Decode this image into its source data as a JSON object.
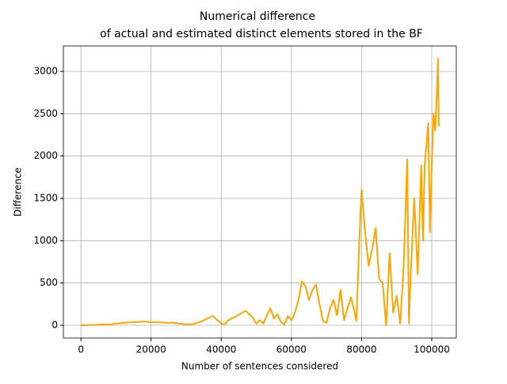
{
  "chart_data": {
    "type": "line",
    "title": [
      "Numerical difference",
      "of actual and estimated distinct elements stored in the BF"
    ],
    "x_label": "Number of sentences considered",
    "y_label": "Difference",
    "xlim": [
      -5000,
      107000
    ],
    "ylim": [
      -150,
      3300
    ],
    "xticks": [
      0,
      20000,
      40000,
      60000,
      80000,
      100000
    ],
    "yticks": [
      0,
      500,
      1000,
      1500,
      2000,
      2500,
      3000
    ],
    "grid": true,
    "series": [
      {
        "color": "#ffa500",
        "x": [
          0,
          2000,
          4000,
          6000,
          8000,
          10000,
          12000,
          14000,
          16000,
          18000,
          20000,
          22000,
          24000,
          26000,
          28000,
          30000,
          32000,
          34000,
          36000,
          37500,
          39000,
          40000,
          41000,
          42000,
          44000,
          46000,
          47000,
          48000,
          49000,
          50000,
          51000,
          52000,
          53000,
          54000,
          55000,
          56000,
          57000,
          58000,
          59000,
          60000,
          61000,
          62000,
          63000,
          64000,
          65000,
          66000,
          67000,
          68000,
          69000,
          70000,
          71000,
          72000,
          73000,
          74000,
          75000,
          76000,
          77000,
          78000,
          78500,
          79000,
          79500,
          80000,
          80500,
          81000,
          82000,
          83000,
          84000,
          85000,
          86000,
          87000,
          88000,
          89000,
          90000,
          91000,
          92000,
          93000,
          93500,
          94000,
          95000,
          96000,
          97000,
          97500,
          98000,
          99000,
          99500,
          100000,
          100500,
          101000,
          101500,
          101800,
          102000
        ],
        "values": [
          0,
          2,
          5,
          10,
          8,
          20,
          28,
          35,
          40,
          45,
          38,
          35,
          30,
          32,
          20,
          10,
          15,
          40,
          80,
          110,
          60,
          20,
          10,
          60,
          100,
          150,
          170,
          130,
          90,
          20,
          60,
          20,
          120,
          200,
          80,
          130,
          40,
          10,
          110,
          60,
          150,
          300,
          520,
          460,
          300,
          420,
          480,
          250,
          50,
          30,
          200,
          300,
          120,
          420,
          60,
          200,
          330,
          150,
          50,
          600,
          1150,
          1600,
          1350,
          1100,
          700,
          900,
          1150,
          550,
          500,
          0,
          850,
          150,
          350,
          20,
          700,
          1960,
          20,
          600,
          1500,
          600,
          1890,
          1000,
          1900,
          2390,
          1100,
          1900,
          2500,
          2300,
          2800,
          3150,
          2350
        ]
      }
    ]
  }
}
